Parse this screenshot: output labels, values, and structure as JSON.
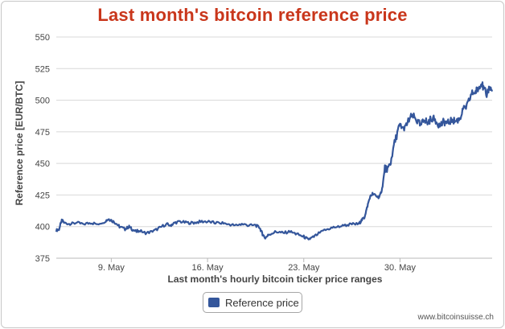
{
  "chart_data": {
    "type": "line",
    "title": "Last month's bitcoin reference price",
    "xlabel": "Last month's hourly bitcoin ticker price ranges",
    "ylabel": "Reference price [EUR/BTC]",
    "ylim": [
      375,
      550
    ],
    "y_ticks": [
      375,
      400,
      425,
      450,
      475,
      500,
      525,
      550
    ],
    "x_ticks": [
      {
        "label": "9. May",
        "day": 9
      },
      {
        "label": "16. May",
        "day": 16
      },
      {
        "label": "23. May",
        "day": 23
      },
      {
        "label": "30. May",
        "day": 30
      }
    ],
    "x_range_days": [
      5,
      36.7
    ],
    "grid": "horizontal",
    "series": [
      {
        "name": "Reference price",
        "color": "#34569b",
        "x": [
          5.0,
          5.2,
          5.4,
          5.6,
          6.0,
          6.5,
          7.0,
          7.5,
          8.0,
          8.5,
          8.8,
          9.0,
          9.3,
          9.6,
          10.0,
          10.3,
          10.5,
          10.8,
          11.0,
          11.5,
          12.0,
          12.5,
          13.0,
          13.3,
          13.6,
          14.0,
          14.5,
          15.0,
          15.5,
          16.0,
          16.5,
          17.0,
          17.5,
          18.0,
          18.5,
          19.0,
          19.5,
          19.8,
          20.0,
          20.2,
          20.5,
          21.0,
          21.5,
          22.0,
          22.5,
          23.0,
          23.3,
          23.6,
          24.0,
          24.5,
          25.0,
          25.5,
          26.0,
          26.5,
          27.0,
          27.2,
          27.4,
          27.6,
          27.8,
          28.0,
          28.3,
          28.5,
          28.7,
          28.9,
          29.0,
          29.3,
          29.5,
          29.8,
          30.0,
          30.3,
          30.6,
          30.9,
          31.2,
          31.5,
          31.8,
          32.0,
          32.3,
          32.6,
          32.9,
          33.2,
          33.5,
          33.8,
          34.0,
          34.3,
          34.6,
          34.9,
          35.2,
          35.5,
          35.7,
          35.9,
          36.1,
          36.3,
          36.5,
          36.7
        ],
        "values": [
          397,
          398,
          405,
          403,
          402,
          403,
          402,
          403,
          402,
          404,
          406,
          405,
          403,
          400,
          398,
          400,
          398,
          396,
          397,
          395,
          396,
          399,
          402,
          401,
          403,
          404,
          403,
          403,
          404,
          404,
          403,
          403,
          402,
          401,
          402,
          401,
          401,
          399,
          394,
          391,
          394,
          396,
          395,
          396,
          394,
          392,
          390,
          391,
          394,
          397,
          399,
          400,
          401,
          402,
          402,
          405,
          407,
          415,
          423,
          426,
          424,
          423,
          430,
          446,
          445,
          449,
          462,
          474,
          481,
          476,
          484,
          488,
          484,
          480,
          485,
          482,
          486,
          484,
          480,
          483,
          482,
          485,
          483,
          485,
          492,
          496,
          505,
          507,
          509,
          515,
          508,
          505,
          510,
          507
        ]
      }
    ]
  },
  "legend": {
    "label": "Reference price"
  },
  "credit": "www.bitcoinsuisse.ch"
}
